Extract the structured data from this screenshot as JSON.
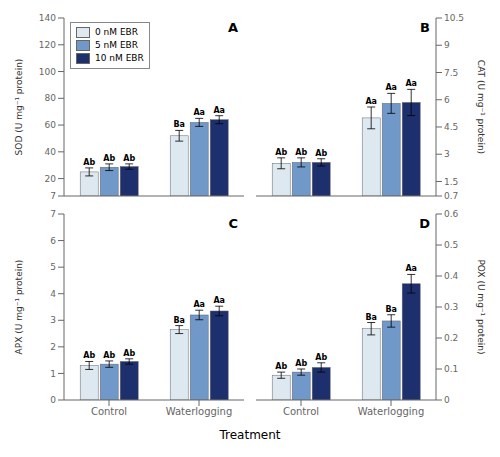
{
  "chart_data": [
    {
      "type": "bar",
      "title": "A",
      "ylabel": "SOD (U mg⁻¹ protein)",
      "categories": [
        "Control",
        "Waterlogging"
      ],
      "series": [
        {
          "name": "0 nM EBR",
          "color": "#dde8f0",
          "values": [
            25,
            52
          ],
          "errors": [
            3,
            4
          ],
          "annotations": [
            "Ab",
            "Ba"
          ]
        },
        {
          "name": "5 nM EBR",
          "color": "#7098c8",
          "values": [
            28.5,
            62
          ],
          "errors": [
            2.5,
            3
          ],
          "annotations": [
            "Ab",
            "Aa"
          ]
        },
        {
          "name": "10 nM EBR",
          "color": "#1e2f6e",
          "values": [
            29,
            64
          ],
          "errors": [
            2,
            3
          ],
          "annotations": [
            "Ab",
            "Aa"
          ]
        }
      ],
      "ylim": [
        7,
        140
      ],
      "yticks": [
        7,
        20,
        40,
        60,
        80,
        100,
        120,
        140
      ],
      "grid": false,
      "legend": "upper left",
      "tick_labels": "y"
    },
    {
      "type": "bar",
      "title": "B",
      "ylabel": "CAT (U mg⁻¹ protein)",
      "categories": [
        "Control",
        "Waterlogging"
      ],
      "series": [
        {
          "name": "0 nM EBR",
          "color": "#dde8f0",
          "values": [
            2.5,
            5.0
          ],
          "errors": [
            0.3,
            0.6
          ],
          "annotations": [
            "Ab",
            "Aa"
          ]
        },
        {
          "name": "5 nM EBR",
          "color": "#7098c8",
          "values": [
            2.55,
            5.8
          ],
          "errors": [
            0.25,
            0.55
          ],
          "annotations": [
            "Ab",
            "Aa"
          ]
        },
        {
          "name": "10 nM EBR",
          "color": "#1e2f6e",
          "values": [
            2.55,
            5.85
          ],
          "errors": [
            0.2,
            0.72
          ],
          "annotations": [
            "Ab",
            "Aa"
          ]
        }
      ],
      "ylim": [
        0.7,
        10.5
      ],
      "yticks": [
        0.7,
        1.5,
        3,
        4.5,
        6,
        7.5,
        9,
        10.5
      ],
      "grid": false,
      "tick_labels": "y"
    },
    {
      "type": "bar",
      "title": "C",
      "ylabel": "APX (U mg⁻¹ protein)",
      "xlabel": "Treatment",
      "categories": [
        "Control",
        "Waterlogging"
      ],
      "series": [
        {
          "name": "0 nM EBR",
          "color": "#dde8f0",
          "values": [
            1.3,
            2.65
          ],
          "errors": [
            0.15,
            0.15
          ],
          "annotations": [
            "Ab",
            "Ba"
          ]
        },
        {
          "name": "5 nM EBR",
          "color": "#7098c8",
          "values": [
            1.35,
            3.2
          ],
          "errors": [
            0.12,
            0.18
          ],
          "annotations": [
            "Ab",
            "Aa"
          ]
        },
        {
          "name": "10 nM EBR",
          "color": "#1e2f6e",
          "values": [
            1.45,
            3.35
          ],
          "errors": [
            0.1,
            0.18
          ],
          "annotations": [
            "Ab",
            "Aa"
          ]
        }
      ],
      "ylim": [
        0,
        7
      ],
      "yticks": [
        0,
        1,
        2,
        3,
        4,
        5,
        6,
        7
      ],
      "grid": false
    },
    {
      "type": "bar",
      "title": "D",
      "ylabel": "POX (U mg⁻¹ protein)",
      "xlabel": "Treatment",
      "categories": [
        "Control",
        "Waterlogging"
      ],
      "series": [
        {
          "name": "0 nM EBR",
          "color": "#dde8f0",
          "values": [
            0.08,
            0.23
          ],
          "errors": [
            0.01,
            0.02
          ],
          "annotations": [
            "Ab",
            "Ba"
          ]
        },
        {
          "name": "5 nM EBR",
          "color": "#7098c8",
          "values": [
            0.09,
            0.255
          ],
          "errors": [
            0.01,
            0.02
          ],
          "annotations": [
            "Ab",
            "Ba"
          ]
        },
        {
          "name": "10 nM EBR",
          "color": "#1e2f6e",
          "values": [
            0.105,
            0.375
          ],
          "errors": [
            0.015,
            0.03
          ],
          "annotations": [
            "Ab",
            "Aa"
          ]
        }
      ],
      "ylim": [
        0,
        0.6
      ],
      "yticks": [
        0,
        0.1,
        0.2,
        0.3,
        0.4,
        0.5,
        0.6
      ],
      "grid": false
    }
  ]
}
